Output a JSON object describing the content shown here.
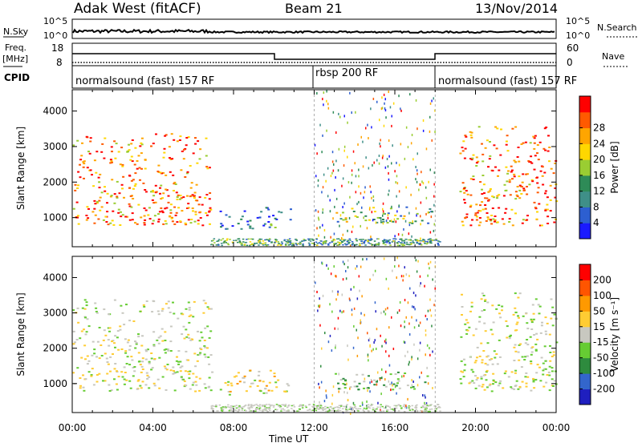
{
  "header": {
    "station": "Adak West (fitACF)",
    "beam": "Beam 21",
    "date": "13/Nov/2014"
  },
  "panels": {
    "nsky_label": "N.Sky",
    "nsearch_label": "N.Search",
    "nsky_ticks": [
      "10^5",
      "10^0"
    ],
    "nsearch_ticks": [
      "10^5",
      "10^0"
    ],
    "freq_label": "Freq.",
    "freq_unit": "[MHz]",
    "freq_ticks": [
      "18",
      "8"
    ],
    "nave_label": "Nave",
    "nave_ticks": [
      "60",
      "0"
    ],
    "cpid_label": "CPID",
    "cpid_segments": [
      "normalsound (fast) 157 RF",
      "rbsp 200 RF",
      "normalsound (fast) 157 RF"
    ]
  },
  "chart_data": [
    {
      "type": "heatmap",
      "title": "Power",
      "ylabel": "Slant Range [km]",
      "xlabel": "Time UT",
      "x_ticks": [
        "00:00",
        "04:00",
        "08:00",
        "12:00",
        "16:00",
        "20:00",
        "00:00"
      ],
      "xlim_hours": [
        0,
        24
      ],
      "y_ticks": [
        1000,
        2000,
        3000,
        4000
      ],
      "ylim_km": [
        180,
        4600
      ],
      "colorbar": {
        "label": "Power [dB]",
        "ticks": [
          "4",
          "8",
          "12",
          "16",
          "20",
          "24",
          "28"
        ],
        "range": [
          0,
          30
        ],
        "colors": [
          "#1a1aff",
          "#2d5fd0",
          "#3f8f88",
          "#2e8b57",
          "#9acd32",
          "#ffd700",
          "#ffa500",
          "#ff5a00",
          "#ff0000"
        ]
      },
      "regions": [
        {
          "name": "morning-echoes",
          "t": [
            0.0,
            6.9
          ],
          "r": [
            800,
            3400
          ],
          "level": 24
        },
        {
          "name": "midday-low",
          "t": [
            7.3,
            10.8
          ],
          "r": [
            700,
            1400
          ],
          "level": 6
        },
        {
          "name": "afternoon-band",
          "t": [
            13.0,
            17.8
          ],
          "r": [
            850,
            1350
          ],
          "level": 14
        },
        {
          "name": "evening-echoes",
          "t": [
            19.2,
            24.0
          ],
          "r": [
            800,
            3600
          ],
          "level": 24
        }
      ]
    },
    {
      "type": "heatmap",
      "title": "Velocity",
      "ylabel": "Slant Range [km]",
      "xlabel": "Time UT",
      "x_ticks": [
        "00:00",
        "04:00",
        "08:00",
        "12:00",
        "16:00",
        "20:00",
        "00:00"
      ],
      "xlim_hours": [
        0,
        24
      ],
      "y_ticks": [
        1000,
        2000,
        3000,
        4000
      ],
      "ylim_km": [
        180,
        4600
      ],
      "colorbar": {
        "label": "Velocity [m s⁻¹]",
        "ticks": [
          "200",
          "100",
          "50",
          "15",
          "-15",
          "-50",
          "-100",
          "-200"
        ],
        "range": [
          -250,
          250
        ],
        "colors": [
          "#1f1fbf",
          "#3366cc",
          "#2e8b3e",
          "#66cc33",
          "#c8c8c0",
          "#ffcc33",
          "#ff9900",
          "#ff5500",
          "#ff0000"
        ]
      },
      "regions": [
        {
          "name": "morning-echoes",
          "t": [
            0.0,
            6.9
          ],
          "r": [
            800,
            3400
          ],
          "level": 0
        },
        {
          "name": "midday-low",
          "t": [
            7.3,
            10.8
          ],
          "r": [
            700,
            1400
          ],
          "level": 30
        },
        {
          "name": "afternoon-band",
          "t": [
            13.0,
            17.8
          ],
          "r": [
            850,
            1350
          ],
          "level": -60
        },
        {
          "name": "evening-echoes",
          "t": [
            19.2,
            24.0
          ],
          "r": [
            800,
            3600
          ],
          "level": 0
        }
      ]
    }
  ]
}
